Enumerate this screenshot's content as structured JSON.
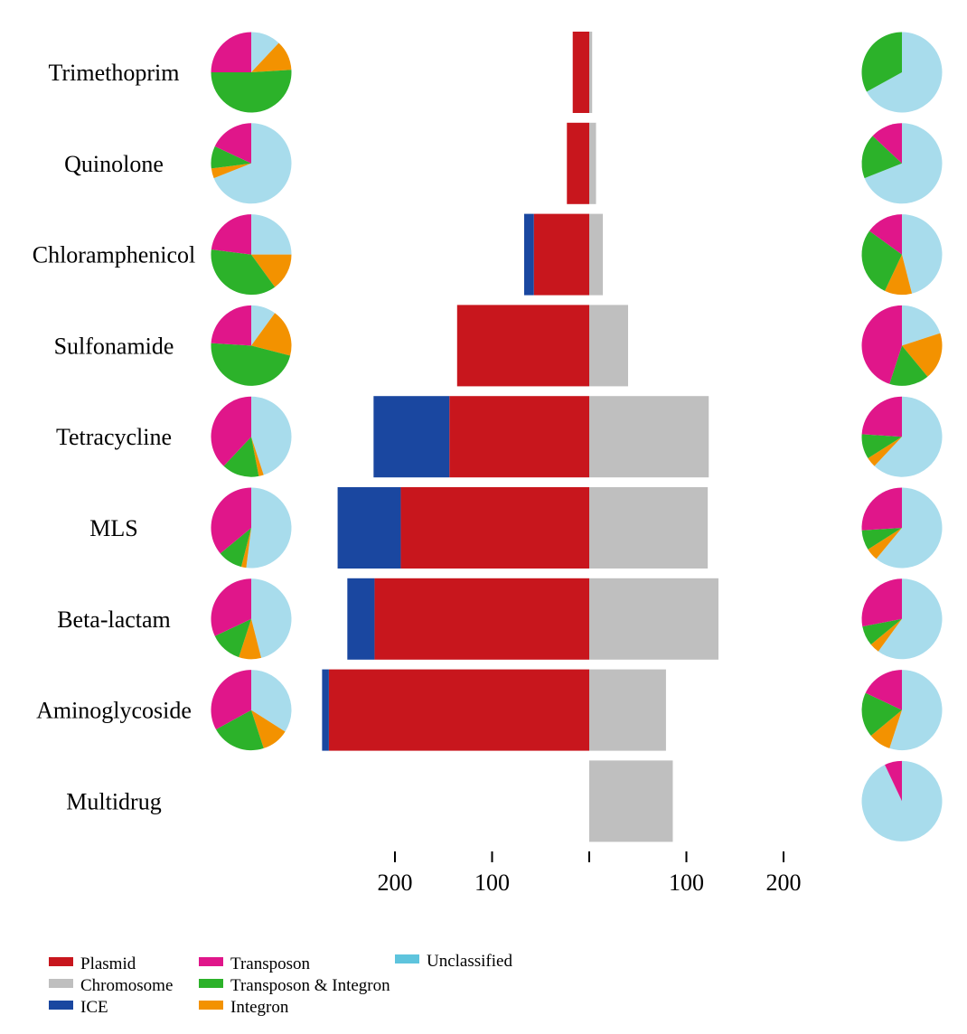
{
  "chart_data": {
    "type": "bar",
    "orientation": "horizontal-diverging",
    "categories": [
      "Trimethoprim",
      "Quinolone",
      "Chloramphenicol",
      "Sulfonamide",
      "Tetracycline",
      "MLS",
      "Beta-lactam",
      "Aminoglycoside",
      "Multidrug"
    ],
    "bar_series": [
      {
        "name": "Plasmid",
        "side": "left",
        "color": "#c8161d",
        "values": [
          17,
          23,
          57,
          136,
          144,
          194,
          221,
          268,
          0
        ]
      },
      {
        "name": "ICE",
        "side": "left",
        "color": "#1a47a0",
        "values": [
          0,
          0,
          10,
          0,
          78,
          65,
          28,
          7,
          0
        ]
      },
      {
        "name": "Chromosome",
        "side": "right",
        "color": "#bfbfbf",
        "values": [
          3,
          7,
          14,
          40,
          123,
          122,
          133,
          79,
          86
        ]
      }
    ],
    "x_ticks_left": [
      200,
      100
    ],
    "x_ticks_right": [
      100,
      200
    ],
    "pie_series": [
      "Unclassified",
      "Integron",
      "Transposon & Integron",
      "Transposon"
    ],
    "pie_colors": {
      "Unclassified": "#a8dcec",
      "Integron": "#f39200",
      "Transposon & Integron": "#2cb22a",
      "Transposon": "#e0168a"
    },
    "left_pies": [
      [
        12,
        12,
        51,
        25
      ],
      [
        69,
        4,
        9,
        18
      ],
      [
        25,
        15,
        37,
        23
      ],
      [
        10,
        19,
        47,
        24
      ],
      [
        45,
        2,
        15,
        38
      ],
      [
        52,
        2,
        10,
        36
      ],
      [
        46,
        9,
        13,
        32
      ],
      [
        34,
        11,
        22,
        33
      ],
      []
    ],
    "right_pies": [
      [
        67,
        0,
        33,
        0
      ],
      [
        69,
        0,
        18,
        13
      ],
      [
        46,
        11,
        28,
        15
      ],
      [
        20,
        19,
        16,
        45
      ],
      [
        62,
        4,
        10,
        24
      ],
      [
        61,
        5,
        8,
        26
      ],
      [
        60,
        4,
        8,
        28
      ],
      [
        55,
        9,
        18,
        18
      ],
      [
        93,
        0,
        0,
        7
      ]
    ],
    "legend": [
      {
        "label": "Plasmid",
        "color": "#c8161d"
      },
      {
        "label": "Chromosome",
        "color": "#bfbfbf"
      },
      {
        "label": "ICE",
        "color": "#1a47a0"
      },
      {
        "label": "Transposon",
        "color": "#e0168a"
      },
      {
        "label": "Transposon & Integron",
        "color": "#2cb22a"
      },
      {
        "label": "Integron",
        "color": "#f39200"
      },
      {
        "label": "Unclassified",
        "color": "#5ec4dd"
      }
    ],
    "legend_placement": "bottom-left",
    "grid": false
  }
}
